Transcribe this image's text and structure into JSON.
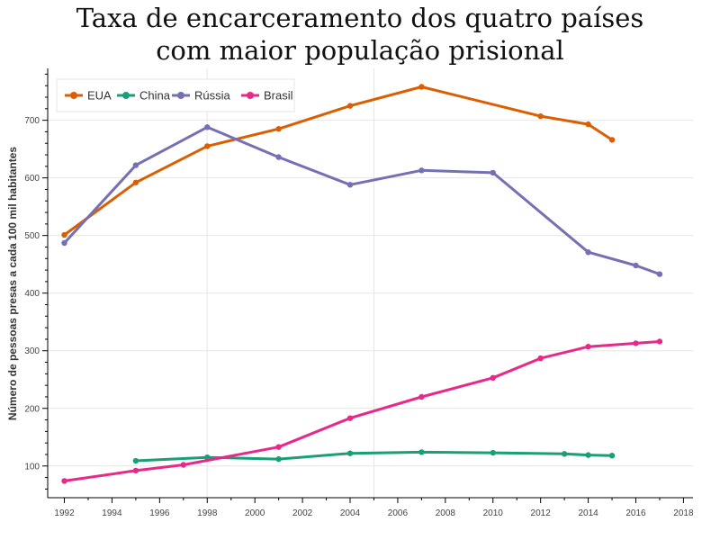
{
  "chart_data": {
    "type": "line",
    "title_line1": "Taxa de encarceramento dos quatro países",
    "title_line2": "com maior população prisional",
    "xlabel": "",
    "ylabel": "Número de pessoas presas a cada 100 mil habitantes",
    "xlim": [
      1991.3,
      2018.4
    ],
    "ylim": [
      45,
      790
    ],
    "xticks": [
      1992,
      1994,
      1996,
      1998,
      2000,
      2002,
      2004,
      2006,
      2008,
      2010,
      2012,
      2014,
      2016,
      2018
    ],
    "yticks": [
      100,
      200,
      300,
      400,
      500,
      600,
      700
    ],
    "grid": true,
    "legend_position": "top-left",
    "series": [
      {
        "name": "EUA",
        "color": "#d95f02",
        "x": [
          1992,
          1995,
          1998,
          2001,
          2004,
          2007,
          2012,
          2014,
          2015
        ],
        "y": [
          501,
          592,
          655,
          685,
          725,
          758,
          707,
          693,
          666
        ]
      },
      {
        "name": "China",
        "color": "#1b9e77",
        "x": [
          1995,
          1998,
          2001,
          2004,
          2007,
          2010,
          2013,
          2014,
          2015
        ],
        "y": [
          109,
          115,
          112,
          122,
          124,
          123,
          121,
          119,
          118
        ]
      },
      {
        "name": "Rússia",
        "color": "#7570b3",
        "x": [
          1992,
          1995,
          1998,
          2001,
          2004,
          2007,
          2010,
          2014,
          2016,
          2017
        ],
        "y": [
          487,
          622,
          688,
          636,
          588,
          613,
          609,
          471,
          448,
          433
        ]
      },
      {
        "name": "Brasil",
        "color": "#e7298a",
        "x": [
          1992,
          1995,
          1997,
          2001,
          2004,
          2007,
          2010,
          2012,
          2014,
          2016,
          2017
        ],
        "y": [
          74,
          92,
          102,
          133,
          183,
          220,
          253,
          287,
          307,
          313,
          316
        ]
      }
    ]
  }
}
